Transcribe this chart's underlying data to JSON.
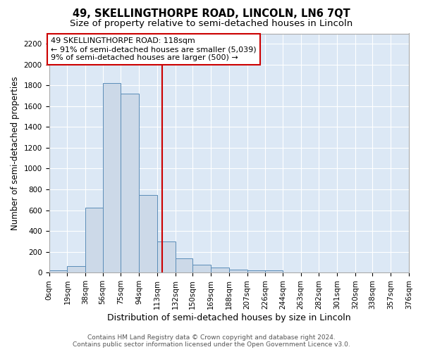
{
  "title": "49, SKELLINGTHORPE ROAD, LINCOLN, LN6 7QT",
  "subtitle": "Size of property relative to semi-detached houses in Lincoln",
  "xlabel": "Distribution of semi-detached houses by size in Lincoln",
  "ylabel": "Number of semi-detached properties",
  "footer_line1": "Contains HM Land Registry data © Crown copyright and database right 2024.",
  "footer_line2": "Contains public sector information licensed under the Open Government Licence v3.0.",
  "annotation_title": "49 SKELLINGTHORPE ROAD: 118sqm",
  "annotation_line1": "← 91% of semi-detached houses are smaller (5,039)",
  "annotation_line2": "9% of semi-detached houses are larger (500) →",
  "bin_edges": [
    0,
    19,
    38,
    56,
    75,
    94,
    113,
    132,
    150,
    169,
    188,
    207,
    226,
    244,
    263,
    282,
    301,
    320,
    338,
    357,
    376
  ],
  "bar_heights": [
    20,
    60,
    625,
    1820,
    1720,
    745,
    300,
    135,
    75,
    45,
    25,
    20,
    20,
    0,
    0,
    0,
    0,
    0,
    0,
    0
  ],
  "bar_color": "#ccd9e8",
  "bar_edge_color": "#5b8db8",
  "vline_color": "#cc0000",
  "vline_x": 118,
  "ylim": [
    0,
    2300
  ],
  "yticks": [
    0,
    200,
    400,
    600,
    800,
    1000,
    1200,
    1400,
    1600,
    1800,
    2000,
    2200
  ],
  "fig_bg_color": "#ffffff",
  "plot_bg_color": "#dce8f5",
  "annotation_box_color": "white",
  "annotation_box_edge": "#cc0000",
  "title_fontsize": 10.5,
  "subtitle_fontsize": 9.5,
  "xlabel_fontsize": 9,
  "ylabel_fontsize": 8.5,
  "tick_fontsize": 7.5,
  "annotation_fontsize": 8,
  "footer_fontsize": 6.5
}
